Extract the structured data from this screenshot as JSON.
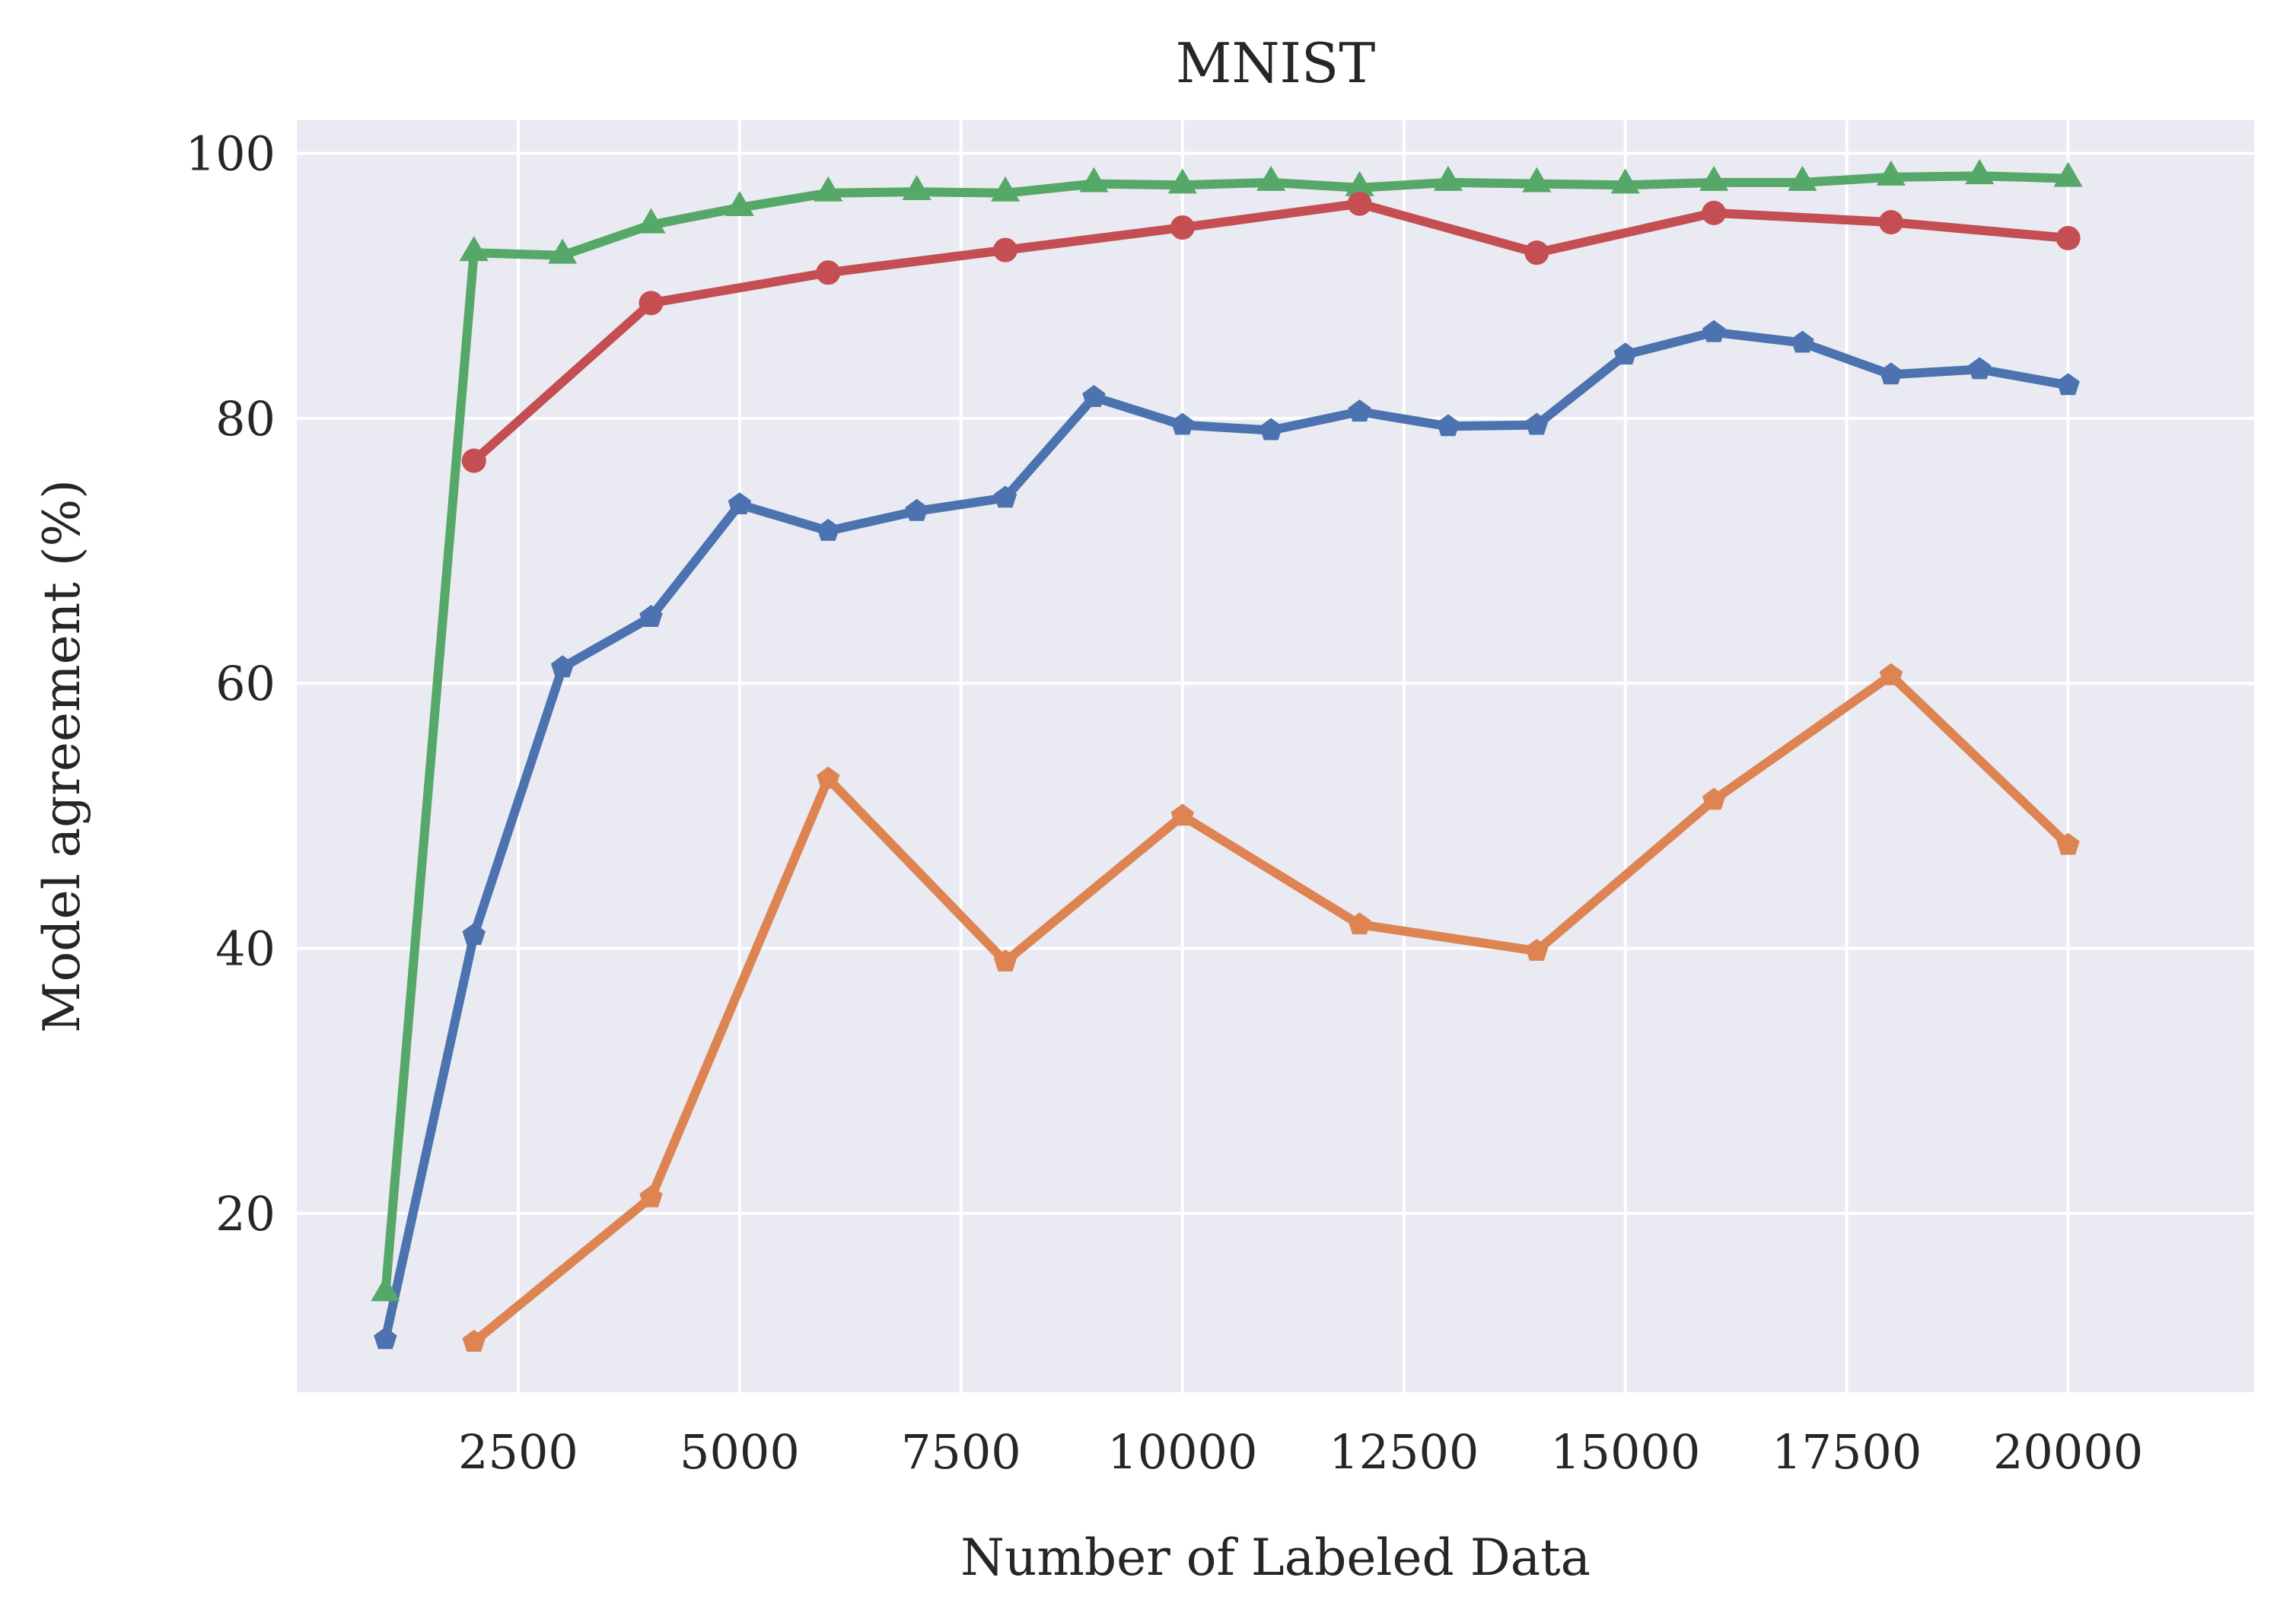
{
  "chart_data": {
    "type": "line",
    "title": "MNIST",
    "xlabel": "Number of Labeled Data",
    "ylabel": "Model agreement (%)",
    "xlim": [
      0,
      22100
    ],
    "ylim": [
      6.5,
      102.5
    ],
    "xticks": [
      2500,
      5000,
      7500,
      10000,
      12500,
      15000,
      17500,
      20000
    ],
    "yticks": [
      20,
      40,
      60,
      80,
      100
    ],
    "grid": true,
    "legend": "none",
    "background": "#eaeaf2",
    "series": [
      {
        "color": "#4c72b0",
        "marker": "pentagon",
        "x": [
          1000,
          2000,
          3000,
          4000,
          5000,
          6000,
          7000,
          8000,
          9000,
          10000,
          11000,
          12000,
          13000,
          14000,
          15000,
          16000,
          17000,
          18000,
          19000,
          20000
        ],
        "values": [
          10.5,
          41.0,
          61.2,
          65.0,
          73.5,
          71.5,
          73.0,
          74.0,
          81.6,
          79.5,
          79.1,
          80.5,
          79.4,
          79.5,
          84.8,
          86.5,
          85.7,
          83.3,
          83.7,
          82.5
        ]
      },
      {
        "color": "#dd8452",
        "marker": "pentagon",
        "x": [
          2000,
          4000,
          6000,
          8000,
          10000,
          12000,
          14000,
          16000,
          18000,
          20000
        ],
        "values": [
          10.3,
          21.2,
          52.8,
          39.0,
          50.0,
          41.8,
          39.8,
          51.2,
          60.6,
          47.8
        ]
      },
      {
        "color": "#55a868",
        "marker": "triangle",
        "x": [
          1000,
          2000,
          3000,
          4000,
          5000,
          6000,
          7000,
          8000,
          9000,
          10000,
          11000,
          12000,
          13000,
          14000,
          15000,
          16000,
          17000,
          18000,
          19000,
          20000
        ],
        "values": [
          14.0,
          92.5,
          92.3,
          94.6,
          95.9,
          97.0,
          97.1,
          97.0,
          97.7,
          97.6,
          97.8,
          97.4,
          97.8,
          97.7,
          97.6,
          97.8,
          97.8,
          98.2,
          98.3,
          98.1
        ]
      },
      {
        "color": "#c44e52",
        "marker": "circle",
        "x": [
          2000,
          4000,
          6000,
          8000,
          10000,
          12000,
          14000,
          16000,
          18000,
          20000
        ],
        "values": [
          76.8,
          88.7,
          91.0,
          92.7,
          94.4,
          96.2,
          92.5,
          95.5,
          94.8,
          93.6
        ]
      }
    ]
  }
}
